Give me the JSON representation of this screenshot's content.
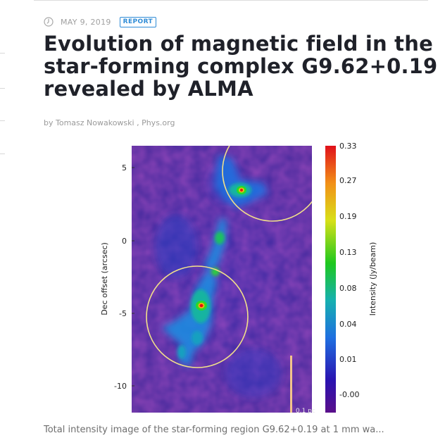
{
  "article": {
    "date": "MAY 9, 2019",
    "badge": "REPORT",
    "title": "Evolution of magnetic field in the star-forming complex G9.62+0.19 revealed by ALMA",
    "byline": "by Tomasz Nowakowski , Phys.org",
    "caption": "Total intensity image of the star-forming region G9.62+0.19 at 1 mm wa..."
  },
  "icons": {
    "date": "clock-icon"
  },
  "colors": {
    "badge": "#2e8bd6",
    "title": "#1f2129",
    "meta": "#a0a0a0"
  },
  "figure": {
    "y_axis_label": "Dec offset (arcsec)",
    "y_ticks": [
      "5",
      "0",
      "-5",
      "-10"
    ],
    "colorbar_label": "Intensity (Jy/beam)",
    "colorbar_ticks": [
      "0.33",
      "0.27",
      "0.19",
      "0.13",
      "0.08",
      "0.04",
      "0.01",
      "-0.00"
    ],
    "scale_bar_label": "0.1 pc"
  }
}
